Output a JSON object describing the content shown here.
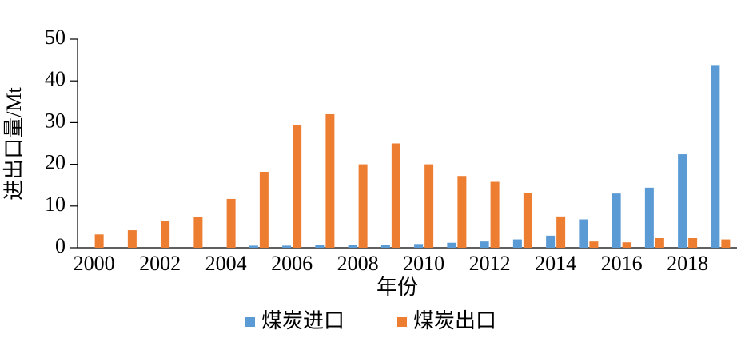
{
  "chart_data": {
    "type": "bar",
    "x_label": "年份",
    "y_label": "进出口量/Mt",
    "categories": [
      "2000",
      null,
      "2002",
      null,
      "2004",
      null,
      "2006",
      null,
      "2008",
      null,
      "2010",
      null,
      "2012",
      null,
      "2014",
      null,
      "2016",
      null,
      "2018",
      null
    ],
    "series": [
      {
        "name": "煤炭进口",
        "color": "#5b9bd5",
        "values": [
          0,
          0,
          0,
          0,
          0,
          0.5,
          0.5,
          0.6,
          0.6,
          0.7,
          0.9,
          1.2,
          1.5,
          2,
          2.9,
          6.8,
          13,
          14.4,
          22.4,
          43.8
        ]
      },
      {
        "name": "煤炭出口",
        "color": "#ed7d31",
        "values": [
          3.2,
          4.2,
          6.5,
          7.3,
          11.7,
          18.2,
          29.5,
          32,
          20,
          25,
          20,
          17.2,
          15.8,
          13.2,
          7.5,
          1.5,
          1.3,
          2.3,
          2.3,
          2
        ]
      }
    ],
    "ylim": [
      0,
      50
    ],
    "yticks": [
      0,
      10,
      20,
      30,
      40,
      50
    ],
    "grid": false,
    "legend": "bottom"
  }
}
